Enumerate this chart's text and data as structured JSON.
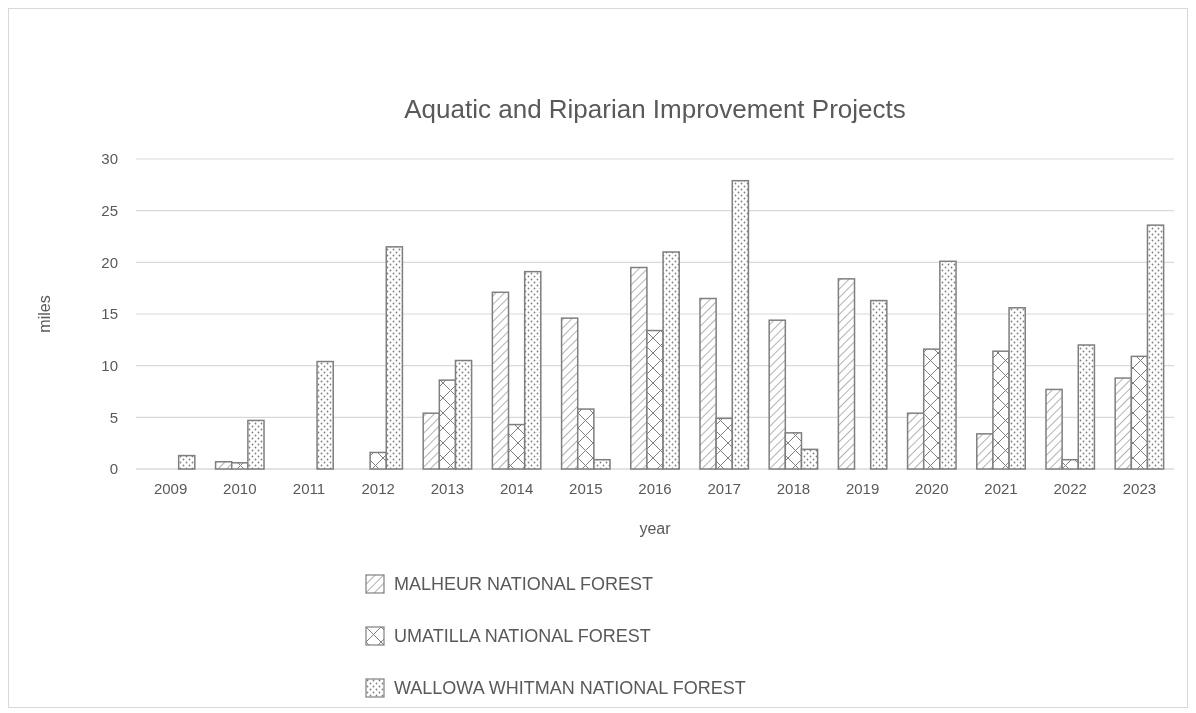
{
  "chart_data": {
    "type": "bar",
    "title": "Aquatic and Riparian Improvement Projects",
    "xlabel": "year",
    "ylabel": "miles",
    "categories": [
      "2009",
      "2010",
      "2011",
      "2012",
      "2013",
      "2014",
      "2015",
      "2016",
      "2017",
      "2018",
      "2019",
      "2020",
      "2021",
      "2022",
      "2023"
    ],
    "series": [
      {
        "name": "MALHEUR NATIONAL FOREST",
        "color": "#7f7f7f",
        "values": [
          null,
          0.7,
          null,
          null,
          5.4,
          17.1,
          14.6,
          19.5,
          16.5,
          14.4,
          18.4,
          5.4,
          3.4,
          7.7,
          8.8
        ]
      },
      {
        "name": "UMATILLA NATIONAL FOREST",
        "color": "#7f7f7f",
        "values": [
          null,
          0.6,
          null,
          1.6,
          8.6,
          4.3,
          5.8,
          13.4,
          4.9,
          3.5,
          null,
          11.6,
          11.4,
          0.9,
          10.9
        ]
      },
      {
        "name": "WALLOWA WHITMAN NATIONAL FOREST",
        "color": "#7f7f7f",
        "values": [
          1.3,
          4.7,
          10.4,
          21.5,
          10.5,
          19.1,
          0.9,
          21.0,
          27.9,
          1.9,
          16.3,
          20.1,
          15.6,
          12.0,
          23.6
        ]
      }
    ],
    "ylim": [
      0,
      30
    ],
    "yticks": [
      0,
      5,
      10,
      15,
      20,
      25,
      30
    ],
    "grid": "y",
    "legend": "bottom"
  }
}
